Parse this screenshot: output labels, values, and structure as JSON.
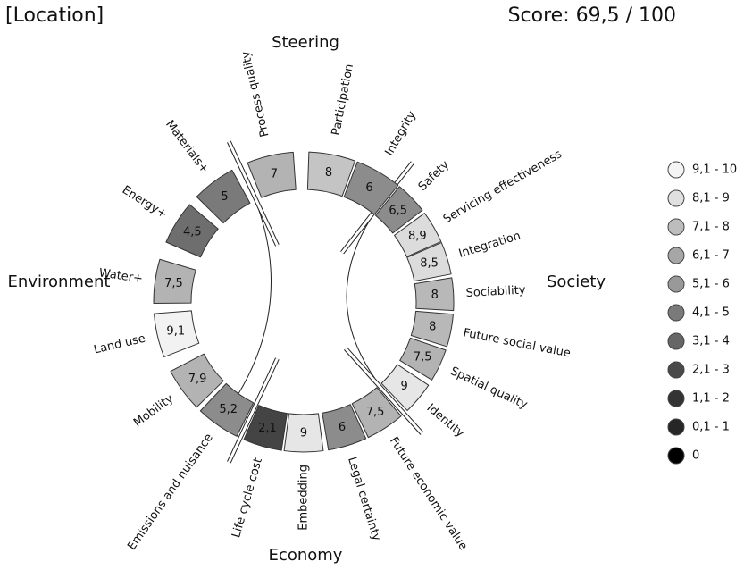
{
  "header": {
    "title": "[Location]",
    "score": "Score: 69,5 / 100"
  },
  "sectors": [
    {
      "name": "Steering",
      "segments": [
        {
          "label": "Process quality",
          "value_label": "7",
          "color": "#b3b3b3"
        },
        {
          "label": "Participation",
          "value_label": "8",
          "color": "#c4c4c4"
        },
        {
          "label": "Integrity",
          "value_label": "6",
          "color": "#8c8c8c"
        }
      ]
    },
    {
      "name": "Society",
      "segments": [
        {
          "label": "Safety",
          "value_label": "6,5",
          "color": "#8c8c8c"
        },
        {
          "label": "Servicing effectiveness",
          "value_label": "8,9",
          "color": "#dcdcdc"
        },
        {
          "label": "Integration",
          "value_label": "8,5",
          "color": "#dcdcdc"
        },
        {
          "label": "Sociability",
          "value_label": "8",
          "color": "#b8b8b8"
        },
        {
          "label": "Future social value",
          "value_label": "8",
          "color": "#b8b8b8"
        },
        {
          "label": "Spatial quality",
          "value_label": "7,5",
          "color": "#b3b3b3"
        },
        {
          "label": "Identity",
          "value_label": "9",
          "color": "#e6e6e6"
        }
      ]
    },
    {
      "name": "Economy",
      "segments": [
        {
          "label": "Future economic value",
          "value_label": "7,5",
          "color": "#b3b3b3"
        },
        {
          "label": "Legal certainty",
          "value_label": "6",
          "color": "#8c8c8c"
        },
        {
          "label": "Embedding",
          "value_label": "9",
          "color": "#e6e6e6"
        },
        {
          "label": "Life cycle cost",
          "value_label": "2,1",
          "color": "#444444"
        }
      ]
    },
    {
      "name": "Environment",
      "segments": [
        {
          "label": "Emissions and nuisance",
          "value_label": "5,2",
          "color": "#8c8c8c"
        },
        {
          "label": "Mobility",
          "value_label": "7,9",
          "color": "#b3b3b3"
        },
        {
          "label": "Land use",
          "value_label": "9,1",
          "color": "#f2f2f2"
        },
        {
          "label": "Water+",
          "value_label": "7,5",
          "color": "#b3b3b3"
        },
        {
          "label": "Energy+",
          "value_label": "4,5",
          "color": "#6e6e6e"
        },
        {
          "label": "Materials+",
          "value_label": "5",
          "color": "#7a7a7a"
        }
      ]
    }
  ],
  "legend": [
    {
      "label": "9,1 - 10",
      "color": "#f4f4f4"
    },
    {
      "label": "8,1 - 9",
      "color": "#e0e0e0"
    },
    {
      "label": "7,1 - 8",
      "color": "#bdbdbd"
    },
    {
      "label": "6,1 - 7",
      "color": "#a6a6a6"
    },
    {
      "label": "5,1 - 6",
      "color": "#999999"
    },
    {
      "label": "4,1 - 5",
      "color": "#7a7a7a"
    },
    {
      "label": "3,1 - 4",
      "color": "#666666"
    },
    {
      "label": "2,1 - 3",
      "color": "#4a4a4a"
    },
    {
      "label": "1,1 - 2",
      "color": "#333333"
    },
    {
      "label": "0,1 - 1",
      "color": "#262626"
    },
    {
      "label": "0",
      "color": "#000000"
    }
  ]
}
